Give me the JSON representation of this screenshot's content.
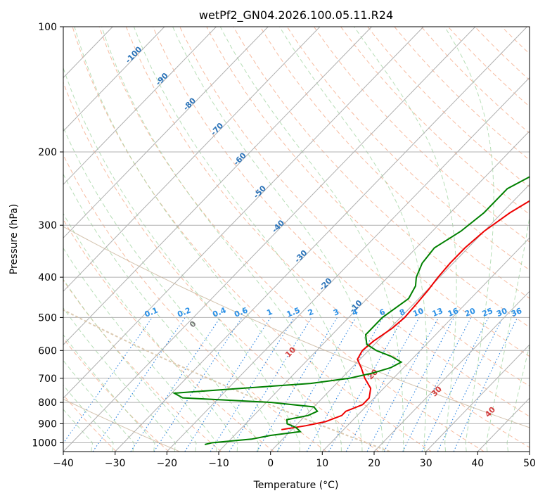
{
  "chart_data": {
    "type": "line",
    "title": "wetPf2_GN04.2026.100.05.11.R24",
    "xlabel": "Temperature (°C)",
    "ylabel": "Pressure (hPa)",
    "xlim": [
      -40,
      50
    ],
    "ylim": [
      1050,
      100
    ],
    "y_scale": "log",
    "x_ticks": [
      -40,
      -30,
      -20,
      -10,
      0,
      10,
      20,
      30,
      40,
      50
    ],
    "y_ticks": [
      1000,
      900,
      800,
      700,
      600,
      500,
      400,
      300,
      200,
      100
    ],
    "grid": true,
    "isotherm_labels": [
      -100,
      -90,
      -80,
      -70,
      -60,
      -50,
      -40,
      -30,
      -20,
      -10
    ],
    "mixing_ratio_labels": [
      "0.1",
      "0.2",
      "0.4",
      "0.6",
      "1",
      "1.5",
      "2",
      "3",
      "4",
      "6",
      "8",
      "10",
      "13",
      "16",
      "20",
      "25",
      "30",
      "36"
    ],
    "moist_adiabat_labels": [
      0,
      10,
      20,
      30,
      40
    ],
    "series": [
      {
        "name": "",
        "color": "#ee0000",
        "p": [
          930,
          910,
          890,
          860,
          840,
          810,
          780,
          740,
          700,
          660,
          630,
          600,
          570,
          530,
          500,
          460,
          430,
          400,
          370,
          340,
          310,
          280,
          260,
          240,
          210,
          180,
          150,
          125,
          110,
          100
        ],
        "t": [
          -2,
          2,
          5,
          7,
          7,
          9,
          9,
          7.5,
          4.5,
          1.8,
          -0.5,
          -1.2,
          -0.8,
          0.4,
          0.8,
          0.5,
          0.2,
          -0.3,
          -0.6,
          -0.6,
          0,
          1.5,
          3.3,
          5.4,
          8.2,
          12.2,
          17.2,
          22.5,
          26.5,
          29
        ]
      },
      {
        "name": "",
        "color": "#008000",
        "p": [
          1010,
          1000,
          980,
          960,
          940,
          920,
          900,
          880,
          860,
          840,
          820,
          800,
          780,
          760,
          740,
          720,
          700,
          680,
          660,
          640,
          620,
          600,
          580,
          550,
          500,
          450,
          420,
          400,
          370,
          340,
          310,
          280,
          260,
          245,
          230,
          215,
          200,
          185,
          170,
          155,
          140,
          125,
          110,
          100
        ],
        "t": [
          -14,
          -13,
          -6,
          -3,
          2,
          0.5,
          -2,
          -2.8,
          0.5,
          1.5,
          0,
          -9,
          -27,
          -29.5,
          -17.5,
          -5,
          1.5,
          5,
          7.5,
          8.5,
          5.5,
          1.5,
          -1.5,
          -3.5,
          -3.5,
          -2,
          -3,
          -4.5,
          -6,
          -6.5,
          -4.5,
          -3.5,
          -3.5,
          -3.5,
          -1.5,
          0,
          -0.5,
          1.5,
          4,
          6.5,
          9.5,
          12.5,
          15.5,
          18.5
        ]
      }
    ]
  }
}
